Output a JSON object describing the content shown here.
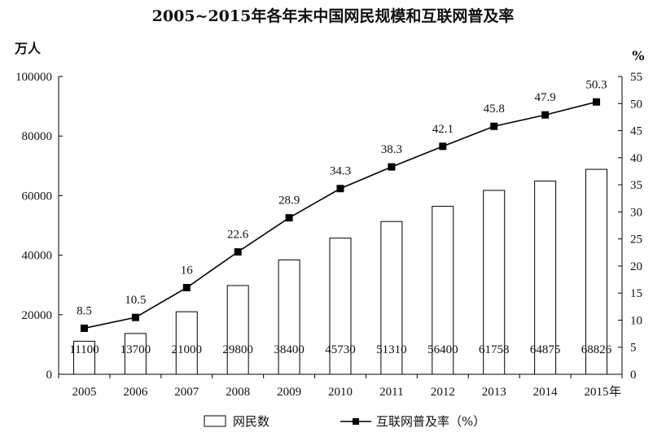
{
  "chart_data": {
    "type": "bar",
    "title": "2005~2015年各年末中国网民规模和互联网普及率",
    "categories": [
      "2005",
      "2006",
      "2007",
      "2008",
      "2009",
      "2010",
      "2011",
      "2012",
      "2013",
      "2014",
      "2015"
    ],
    "xlabel": "年",
    "left_axis": {
      "label": "万人",
      "range": [
        0,
        100000
      ],
      "ticks": [
        0,
        20000,
        40000,
        60000,
        80000,
        100000
      ]
    },
    "right_axis": {
      "label": "%",
      "range": [
        0,
        55
      ],
      "ticks": [
        0,
        5,
        10,
        15,
        20,
        25,
        30,
        35,
        40,
        45,
        50,
        55
      ]
    },
    "series": [
      {
        "name": "网民数",
        "type": "bar",
        "axis": "left",
        "values": [
          11100,
          13700,
          21000,
          29800,
          38400,
          45730,
          51310,
          56400,
          61758,
          64875,
          68826
        ]
      },
      {
        "name": "互联网普及率（%）",
        "type": "line",
        "axis": "right",
        "values": [
          8.5,
          10.5,
          16,
          22.6,
          28.9,
          34.3,
          38.3,
          42.1,
          45.8,
          47.9,
          50.3
        ]
      }
    ],
    "colors": {
      "bar_fill": "#ffffff",
      "stroke": "#000000"
    },
    "legend_position": "bottom-center",
    "grid": false
  }
}
